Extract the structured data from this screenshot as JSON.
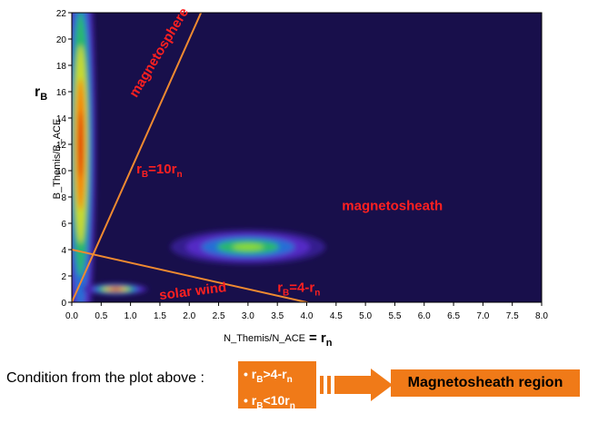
{
  "chart_data": {
    "type": "heatmap",
    "xlabel": "N_Themis/N_ACE",
    "xlabel_suffix": "= r",
    "xlabel_suffix_sub": "n",
    "ylabel": "B_Themis/B_ACE",
    "ylabel_symbol": "r",
    "ylabel_symbol_sub": "B",
    "xlim": [
      0,
      8
    ],
    "ylim": [
      0,
      22
    ],
    "x_ticks": [
      "0.0",
      "0.5",
      "1.0",
      "1.5",
      "2.0",
      "2.5",
      "3.0",
      "3.5",
      "4.0",
      "4.5",
      "5.0",
      "5.5",
      "6.0",
      "6.5",
      "7.0",
      "7.5",
      "8.0"
    ],
    "y_ticks": [
      "0",
      "2",
      "4",
      "6",
      "8",
      "10",
      "12",
      "14",
      "16",
      "18",
      "20",
      "22"
    ],
    "colors": {
      "background": "#0e0a3a",
      "line": "#f08a30",
      "annotation": "#ff2020"
    },
    "clusters": [
      {
        "region": "magnetosphere",
        "x": 0.15,
        "y": 12,
        "sx": 0.12,
        "sy": 8,
        "level": "high"
      },
      {
        "region": "magnetosheath",
        "x": 3.0,
        "y": 4.2,
        "sx": 0.6,
        "sy": 0.6,
        "level": "medium"
      },
      {
        "region": "solar wind",
        "x": 0.75,
        "y": 1.0,
        "sx": 0.25,
        "sy": 0.2,
        "level": "high"
      }
    ],
    "lines": [
      {
        "name": "r_B = 10 r_n",
        "slope": 10,
        "intercept": 0
      },
      {
        "name": "r_B = 4 - r_n",
        "slope": -1,
        "intercept": 4
      }
    ],
    "annotations": [
      {
        "text": "magnetosphere",
        "x": 1.1,
        "y": 15.5,
        "rotate": -59
      },
      {
        "text": "r",
        "sub": "B",
        "tail": "=10r",
        "tail_sub": "n",
        "x": 1.1,
        "y": 9.8
      },
      {
        "text": "magnetosheath",
        "x": 4.6,
        "y": 7.0
      },
      {
        "text": "r",
        "sub": "B",
        "tail": "=4-r",
        "tail_sub": "n",
        "x": 3.5,
        "y": 0.8
      },
      {
        "text": "solar wind",
        "x": 1.5,
        "y": 0.2,
        "rotate": -7
      }
    ]
  },
  "condition": {
    "label": "Condition from the plot above :",
    "bullets": [
      {
        "bullet": "•",
        "a": "r",
        "a_sub": "B",
        "op": ">4-r",
        "op_sub": "n"
      },
      {
        "bullet": "•",
        "a": "r",
        "a_sub": "B",
        "op": "<10r",
        "op_sub": "n"
      }
    ],
    "result": "Magnetosheath region",
    "box_color": "#f07a18"
  }
}
